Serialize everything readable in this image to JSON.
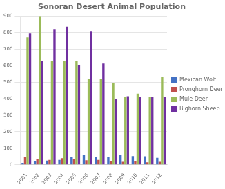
{
  "chart_data": {
    "type": "bar",
    "title": "Sonoran Desert Animal Population",
    "categories": [
      "2001",
      "2002",
      "2003",
      "2004",
      "2005",
      "2006",
      "2007",
      "2008",
      "2009",
      "2010",
      "2011",
      "2012"
    ],
    "series": [
      {
        "name": "Mexican Wolf",
        "color": "#4472c4",
        "values": [
          10,
          20,
          25,
          30,
          45,
          60,
          48,
          50,
          60,
          53,
          52,
          42
        ]
      },
      {
        "name": "Pronghorn Deer",
        "color": "#c0504d",
        "values": [
          45,
          35,
          30,
          40,
          35,
          28,
          30,
          22,
          18,
          20,
          15,
          18
        ]
      },
      {
        "name": "Mule Deer",
        "color": "#9bbb59",
        "values": [
          770,
          900,
          630,
          630,
          630,
          520,
          520,
          495,
          410,
          430,
          410,
          530
        ]
      },
      {
        "name": "Bighorn Sheep",
        "color": "#7030a0",
        "values": [
          795,
          630,
          820,
          835,
          605,
          808,
          612,
          400,
          415,
          410,
          408,
          410
        ]
      }
    ],
    "ylim": [
      0,
      900
    ],
    "yticks": [
      0,
      100,
      200,
      300,
      400,
      500,
      600,
      700,
      800,
      900
    ],
    "grid": true,
    "legend": "right"
  }
}
